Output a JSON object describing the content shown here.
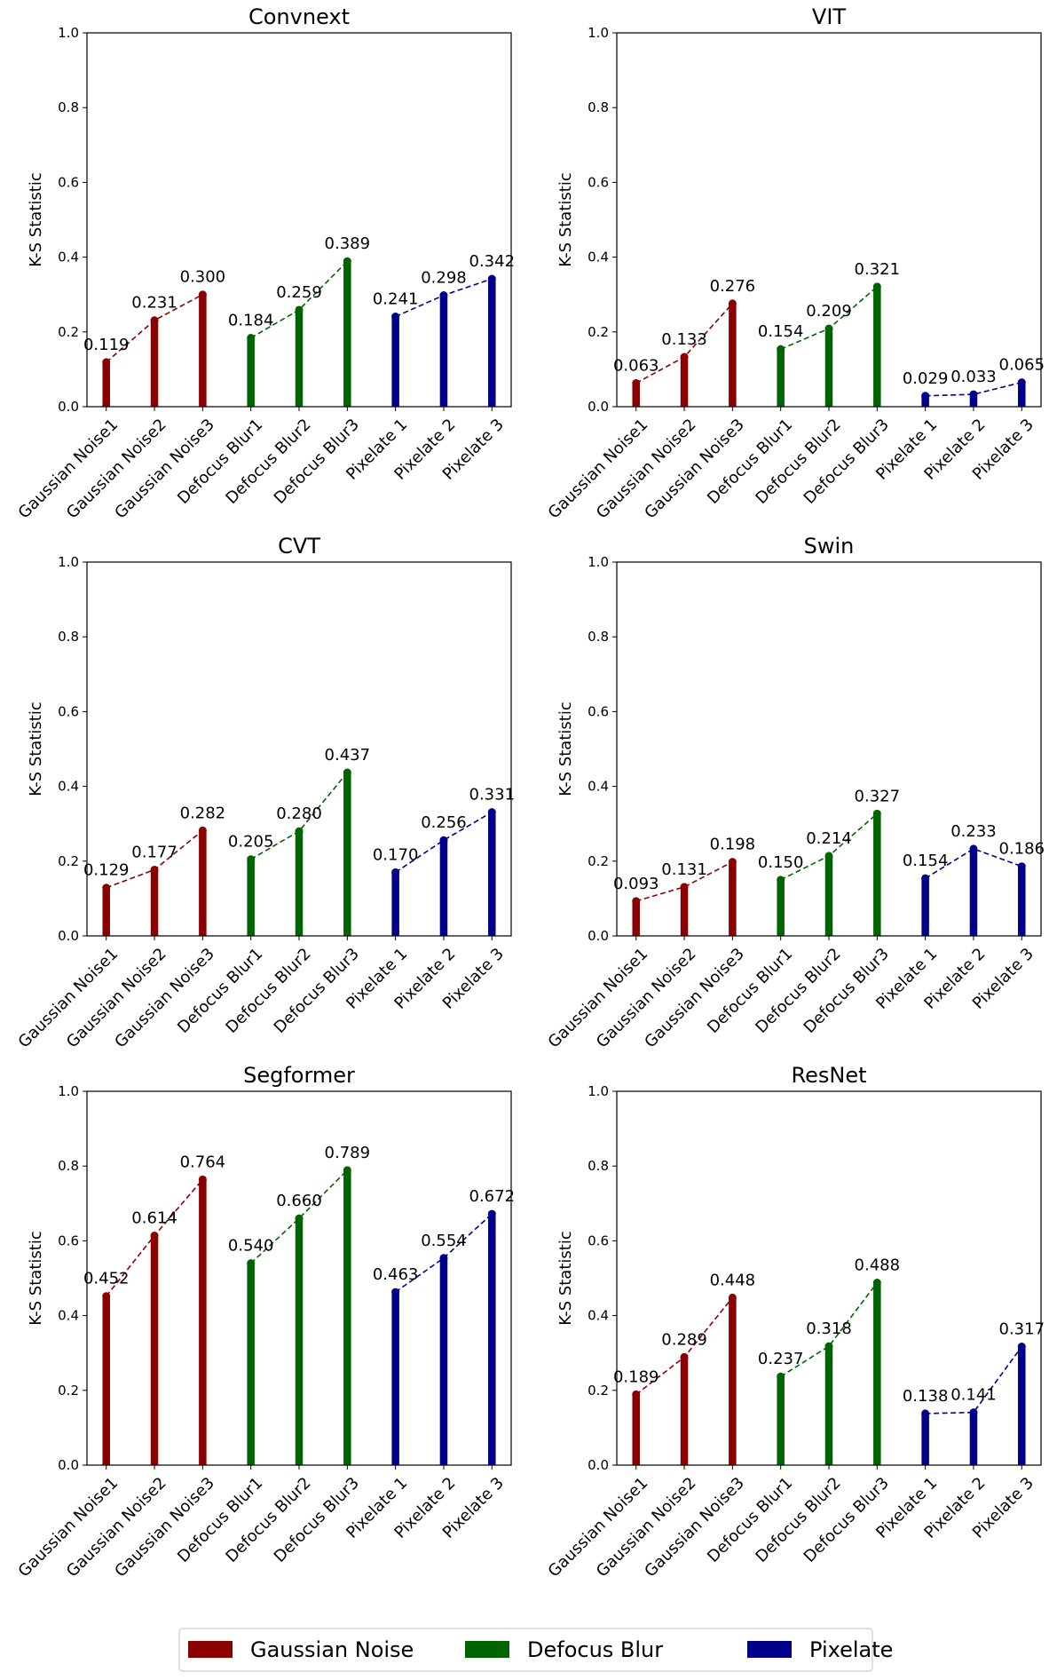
{
  "chart_data": [
    {
      "type": "bar",
      "title": "Convnext",
      "ylabel": "K-S Statistic",
      "xlabel": "",
      "ylim": [
        0,
        1.0
      ],
      "yticks": [
        "0.0",
        "0.2",
        "0.4",
        "0.6",
        "0.8",
        "1.0"
      ],
      "categories": [
        "Gaussian Noise1",
        "Gaussian Noise2",
        "Gaussian Noise3",
        "Defocus Blur1",
        "Defocus Blur2",
        "Defocus Blur3",
        "Pixelate 1",
        "Pixelate 2",
        "Pixelate 3"
      ],
      "values": [
        0.119,
        0.231,
        0.3,
        0.184,
        0.259,
        0.389,
        0.241,
        0.298,
        0.342
      ],
      "labels": [
        "0.119",
        "0.231",
        "0.300",
        "0.184",
        "0.259",
        "0.389",
        "0.241",
        "0.298",
        "0.342"
      ]
    },
    {
      "type": "bar",
      "title": "VIT",
      "ylabel": "K-S Statistic",
      "xlabel": "",
      "ylim": [
        0,
        1.0
      ],
      "yticks": [
        "0.0",
        "0.2",
        "0.4",
        "0.6",
        "0.8",
        "1.0"
      ],
      "categories": [
        "Gaussian Noise1",
        "Gaussian Noise2",
        "Gaussian Noise3",
        "Defocus Blur1",
        "Defocus Blur2",
        "Defocus Blur3",
        "Pixelate 1",
        "Pixelate 2",
        "Pixelate 3"
      ],
      "values": [
        0.063,
        0.133,
        0.276,
        0.154,
        0.209,
        0.321,
        0.029,
        0.033,
        0.065
      ],
      "labels": [
        "0.063",
        "0.133",
        "0.276",
        "0.154",
        "0.209",
        "0.321",
        "0.029",
        "0.033",
        "0.065"
      ]
    },
    {
      "type": "bar",
      "title": "CVT",
      "ylabel": "K-S Statistic",
      "xlabel": "",
      "ylim": [
        0,
        1.0
      ],
      "yticks": [
        "0.0",
        "0.2",
        "0.4",
        "0.6",
        "0.8",
        "1.0"
      ],
      "categories": [
        "Gaussian Noise1",
        "Gaussian Noise2",
        "Gaussian Noise3",
        "Defocus Blur1",
        "Defocus Blur2",
        "Defocus Blur3",
        "Pixelate 1",
        "Pixelate 2",
        "Pixelate 3"
      ],
      "values": [
        0.129,
        0.177,
        0.282,
        0.205,
        0.28,
        0.437,
        0.17,
        0.256,
        0.331
      ],
      "labels": [
        "0.129",
        "0.177",
        "0.282",
        "0.205",
        "0.280",
        "0.437",
        "0.170",
        "0.256",
        "0.331"
      ]
    },
    {
      "type": "bar",
      "title": "Swin",
      "ylabel": "K-S Statistic",
      "xlabel": "",
      "ylim": [
        0,
        1.0
      ],
      "yticks": [
        "0.0",
        "0.2",
        "0.4",
        "0.6",
        "0.8",
        "1.0"
      ],
      "categories": [
        "Gaussian Noise1",
        "Gaussian Noise2",
        "Gaussian Noise3",
        "Defocus Blur1",
        "Defocus Blur2",
        "Defocus Blur3",
        "Pixelate 1",
        "Pixelate 2",
        "Pixelate 3"
      ],
      "values": [
        0.093,
        0.131,
        0.198,
        0.15,
        0.214,
        0.327,
        0.154,
        0.233,
        0.186
      ],
      "labels": [
        "0.093",
        "0.131",
        "0.198",
        "0.150",
        "0.214",
        "0.327",
        "0.154",
        "0.233",
        "0.186"
      ]
    },
    {
      "type": "bar",
      "title": "Segformer",
      "ylabel": "K-S Statistic",
      "xlabel": "",
      "ylim": [
        0,
        1.0
      ],
      "yticks": [
        "0.0",
        "0.2",
        "0.4",
        "0.6",
        "0.8",
        "1.0"
      ],
      "categories": [
        "Gaussian Noise1",
        "Gaussian Noise2",
        "Gaussian Noise3",
        "Defocus Blur1",
        "Defocus Blur2",
        "Defocus Blur3",
        "Pixelate 1",
        "Pixelate 2",
        "Pixelate 3"
      ],
      "values": [
        0.452,
        0.614,
        0.764,
        0.54,
        0.66,
        0.789,
        0.463,
        0.554,
        0.672
      ],
      "labels": [
        "0.452",
        "0.614",
        "0.764",
        "0.540",
        "0.660",
        "0.789",
        "0.463",
        "0.554",
        "0.672"
      ]
    },
    {
      "type": "bar",
      "title": "ResNet",
      "ylabel": "K-S Statistic",
      "xlabel": "",
      "ylim": [
        0,
        1.0
      ],
      "yticks": [
        "0.0",
        "0.2",
        "0.4",
        "0.6",
        "0.8",
        "1.0"
      ],
      "categories": [
        "Gaussian Noise1",
        "Gaussian Noise2",
        "Gaussian Noise3",
        "Defocus Blur1",
        "Defocus Blur2",
        "Defocus Blur3",
        "Pixelate 1",
        "Pixelate 2",
        "Pixelate 3"
      ],
      "values": [
        0.189,
        0.289,
        0.448,
        0.237,
        0.318,
        0.488,
        0.138,
        0.141,
        0.317
      ],
      "labels": [
        "0.189",
        "0.289",
        "0.448",
        "0.237",
        "0.318",
        "0.488",
        "0.138",
        "0.141",
        "0.317"
      ]
    }
  ],
  "legend": {
    "placement": "bottom-center",
    "items": [
      {
        "label": "Gaussian Noise",
        "color": "#8b0000"
      },
      {
        "label": "Defocus Blur",
        "color": "#006400"
      },
      {
        "label": "Pixelate",
        "color": "#00008b"
      }
    ]
  },
  "group_colors": [
    "#8b0000",
    "#8b0000",
    "#8b0000",
    "#006400",
    "#006400",
    "#006400",
    "#00008b",
    "#00008b",
    "#00008b"
  ]
}
